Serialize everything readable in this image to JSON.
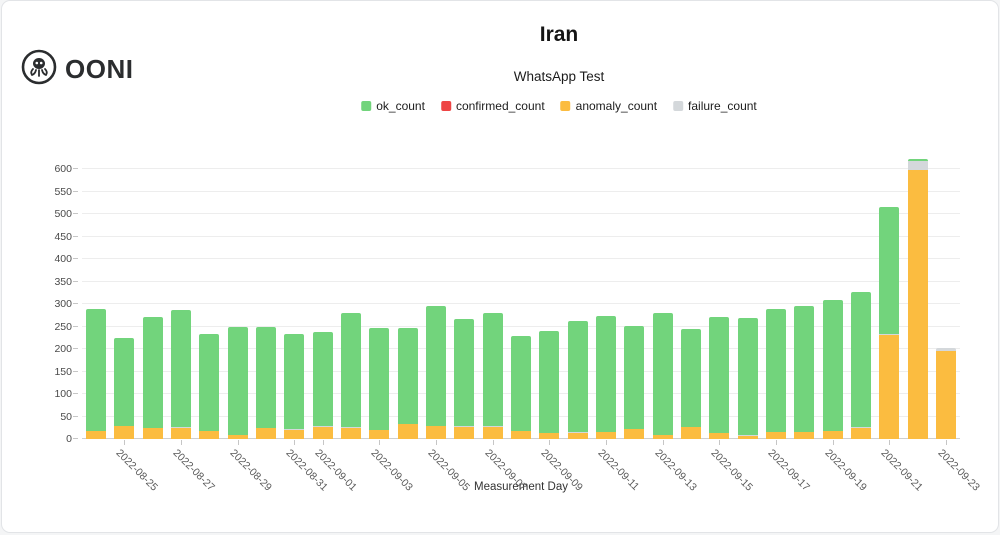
{
  "header": {
    "title": "Iran",
    "subtitle": "WhatsApp Test"
  },
  "logo": {
    "wordmark": "OONI"
  },
  "chart_data": {
    "type": "bar",
    "stacked": true,
    "title": "Iran",
    "subtitle": "WhatsApp Test",
    "xlabel": "Measurement Day",
    "ylabel": "",
    "ylim": [
      0,
      600
    ],
    "ytick_step": 50,
    "grid": true,
    "legend_position": "top-center",
    "x_label_rule": "odd day numbers, rotated 45deg",
    "x": [
      "2022-08-24",
      "2022-08-25",
      "2022-08-26",
      "2022-08-27",
      "2022-08-28",
      "2022-08-29",
      "2022-08-30",
      "2022-08-31",
      "2022-09-01",
      "2022-09-02",
      "2022-09-03",
      "2022-09-04",
      "2022-09-05",
      "2022-09-06",
      "2022-09-07",
      "2022-09-08",
      "2022-09-09",
      "2022-09-10",
      "2022-09-11",
      "2022-09-12",
      "2022-09-13",
      "2022-09-14",
      "2022-09-15",
      "2022-09-16",
      "2022-09-17",
      "2022-09-18",
      "2022-09-19",
      "2022-09-20",
      "2022-09-21",
      "2022-09-22",
      "2022-09-23"
    ],
    "stack_order_bottom_to_top": [
      "anomaly_count",
      "confirmed_count",
      "failure_count",
      "ok_count"
    ],
    "series": [
      {
        "name": "ok_count",
        "color": "#72d47c",
        "values": [
          272,
          194,
          247,
          260,
          217,
          240,
          225,
          212,
          207,
          252,
          226,
          214,
          265,
          237,
          251,
          210,
          226,
          246,
          258,
          229,
          270,
          218,
          259,
          258,
          273,
          279,
          292,
          300,
          283,
          4,
          0
        ]
      },
      {
        "name": "confirmed_count",
        "color": "#ee4545",
        "values": [
          0,
          0,
          0,
          0,
          0,
          0,
          0,
          0,
          0,
          0,
          0,
          0,
          0,
          0,
          0,
          0,
          0,
          0,
          0,
          0,
          0,
          0,
          0,
          0,
          0,
          0,
          0,
          0,
          0,
          0,
          0
        ]
      },
      {
        "name": "anomaly_count",
        "color": "#fbbc40",
        "values": [
          18,
          30,
          25,
          25,
          17,
          10,
          25,
          21,
          28,
          25,
          21,
          33,
          30,
          28,
          26,
          18,
          13,
          15,
          16,
          22,
          10,
          27,
          13,
          9,
          16,
          16,
          17,
          24,
          231,
          598,
          195
        ]
      },
      {
        "name": "failure_count",
        "color": "#d4d8db",
        "values": [
          0,
          0,
          0,
          1,
          0,
          0,
          0,
          1,
          2,
          2,
          0,
          0,
          0,
          2,
          2,
          0,
          0,
          1,
          0,
          0,
          0,
          0,
          0,
          1,
          0,
          0,
          0,
          2,
          2,
          20,
          7
        ]
      }
    ]
  }
}
